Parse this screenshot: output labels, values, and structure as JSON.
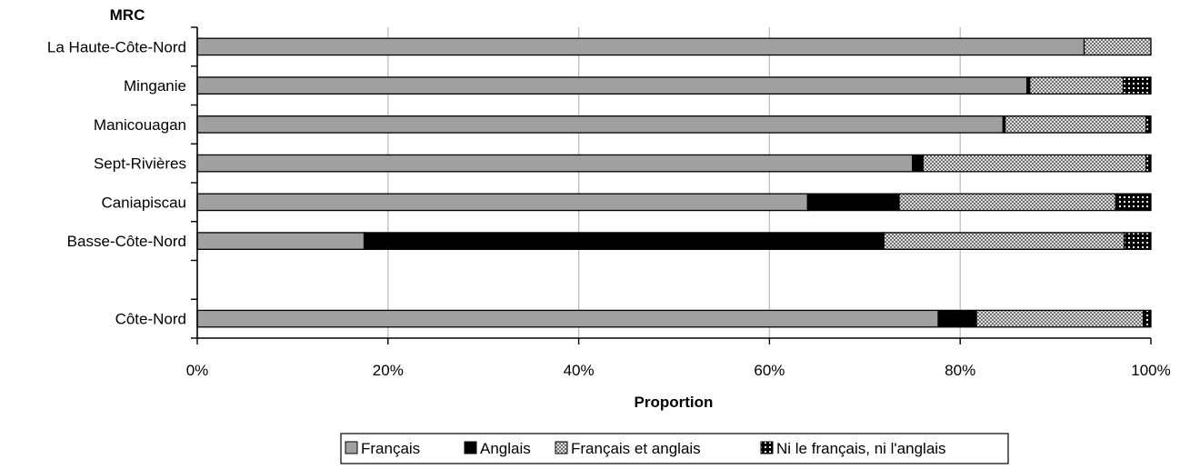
{
  "chart_data": {
    "type": "bar",
    "orientation": "horizontal",
    "stacked": "percent",
    "y_axis_title": "MRC",
    "xlabel": "Proportion",
    "xlim": [
      0,
      100
    ],
    "x_ticks": [
      "0%",
      "20%",
      "40%",
      "60%",
      "80%",
      "100%"
    ],
    "grid": "vertical",
    "legend_position": "bottom",
    "categories": [
      "La Haute-Côte-Nord",
      "Minganie",
      "Manicouagan",
      "Sept-Rivières",
      "Caniapiscau",
      "Basse-Côte-Nord",
      "",
      "Côte-Nord"
    ],
    "series": [
      {
        "name": "Français",
        "color": "#a0a0a0",
        "pattern": "solid",
        "values": [
          93.0,
          87.0,
          84.5,
          75.0,
          64.0,
          17.5,
          null,
          77.7
        ]
      },
      {
        "name": "Anglais",
        "color": "#000000",
        "pattern": "solid",
        "values": [
          0.0,
          0.3,
          0.2,
          1.1,
          9.6,
          54.5,
          null,
          4.0
        ]
      },
      {
        "name": "Français et anglais",
        "color": "#ffffff",
        "pattern": "crosshatch-fine",
        "values": [
          7.0,
          9.8,
          14.8,
          23.4,
          22.7,
          25.2,
          null,
          17.5
        ]
      },
      {
        "name": "Ni le français, ni l'anglais",
        "color": "#000000",
        "pattern": "checker-bold",
        "values": [
          0.0,
          2.9,
          0.5,
          0.5,
          3.7,
          2.8,
          null,
          0.8
        ]
      }
    ]
  }
}
